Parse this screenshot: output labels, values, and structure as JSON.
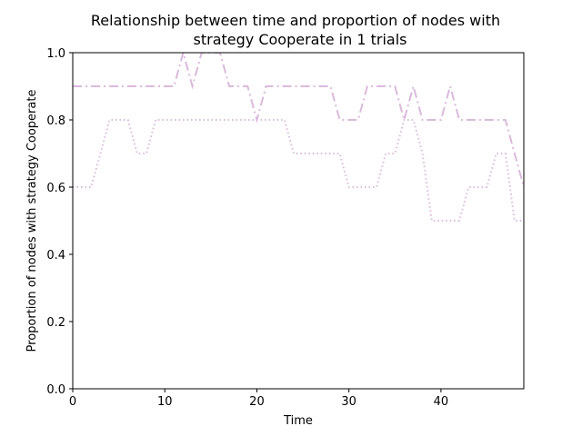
{
  "chart_data": {
    "type": "line",
    "title_line1": "Relationship between time and proportion of nodes with",
    "title_line2": "strategy Cooperate in 1 trials",
    "xlabel": "Time",
    "ylabel": "Proportion of nodes with strategy Cooperate",
    "xlim": [
      0,
      49
    ],
    "ylim": [
      0.0,
      1.0
    ],
    "xticks": [
      0,
      10,
      20,
      30,
      40
    ],
    "xtick_labels": [
      "0",
      "10",
      "20",
      "30",
      "40"
    ],
    "yticks": [
      0.0,
      0.2,
      0.4,
      0.6,
      0.8,
      1.0
    ],
    "ytick_labels": [
      "0.0",
      "0.2",
      "0.4",
      "0.6",
      "0.8",
      "1.0"
    ],
    "grid": false,
    "x": [
      0,
      1,
      2,
      3,
      4,
      5,
      6,
      7,
      8,
      9,
      10,
      11,
      12,
      13,
      14,
      15,
      16,
      17,
      18,
      19,
      20,
      21,
      22,
      23,
      24,
      25,
      26,
      27,
      28,
      29,
      30,
      31,
      32,
      33,
      34,
      35,
      36,
      37,
      38,
      39,
      40,
      41,
      42,
      43,
      44,
      45,
      46,
      47,
      48,
      49
    ],
    "series": [
      {
        "color": "#dbb9dc",
        "linestyle": "dashdot",
        "values": [
          0.9,
          0.9,
          0.9,
          0.9,
          0.9,
          0.9,
          0.9,
          0.9,
          0.9,
          0.9,
          0.9,
          0.9,
          1.0,
          0.9,
          1.0,
          1.0,
          1.0,
          0.9,
          0.9,
          0.9,
          0.8,
          0.9,
          0.9,
          0.9,
          0.9,
          0.9,
          0.9,
          0.9,
          0.9,
          0.8,
          0.8,
          0.8,
          0.9,
          0.9,
          0.9,
          0.9,
          0.8,
          0.9,
          0.8,
          0.8,
          0.8,
          0.9,
          0.8,
          0.8,
          0.8,
          0.8,
          0.8,
          0.8,
          0.7,
          0.6
        ]
      },
      {
        "color": "#dbb9dc",
        "linestyle": "dotted",
        "values": [
          0.6,
          0.6,
          0.6,
          0.7,
          0.8,
          0.8,
          0.8,
          0.7,
          0.7,
          0.8,
          0.8,
          0.8,
          0.8,
          0.8,
          0.8,
          0.8,
          0.8,
          0.8,
          0.8,
          0.8,
          0.8,
          0.8,
          0.8,
          0.8,
          0.7,
          0.7,
          0.7,
          0.7,
          0.7,
          0.7,
          0.6,
          0.6,
          0.6,
          0.6,
          0.7,
          0.7,
          0.8,
          0.8,
          0.7,
          0.5,
          0.5,
          0.5,
          0.5,
          0.6,
          0.6,
          0.6,
          0.7,
          0.7,
          0.5,
          0.5
        ]
      }
    ]
  }
}
